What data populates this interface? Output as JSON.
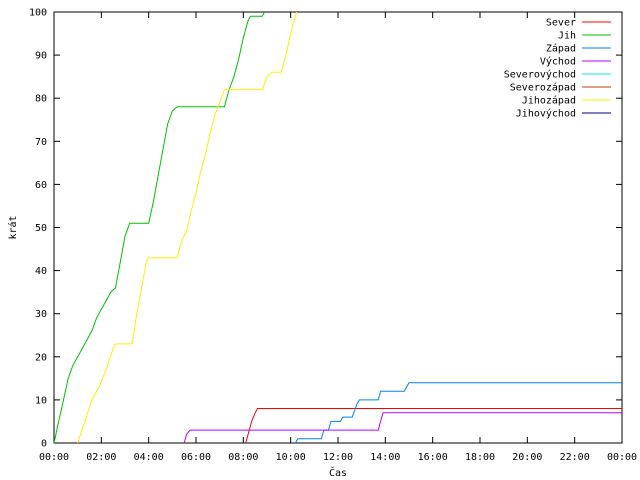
{
  "chart_data": {
    "type": "line",
    "xlabel": "Čas",
    "ylabel": "krát",
    "xlim": [
      0,
      24
    ],
    "ylim": [
      0,
      100
    ],
    "x_ticks": [
      {
        "value": 0,
        "label": "00:00"
      },
      {
        "value": 2,
        "label": "02:00"
      },
      {
        "value": 4,
        "label": "04:00"
      },
      {
        "value": 6,
        "label": "06:00"
      },
      {
        "value": 8,
        "label": "08:00"
      },
      {
        "value": 10,
        "label": "10:00"
      },
      {
        "value": 12,
        "label": "12:00"
      },
      {
        "value": 14,
        "label": "14:00"
      },
      {
        "value": 16,
        "label": "16:00"
      },
      {
        "value": 18,
        "label": "18:00"
      },
      {
        "value": 20,
        "label": "20:00"
      },
      {
        "value": 22,
        "label": "22:00"
      },
      {
        "value": 24,
        "label": "00:00"
      }
    ],
    "y_ticks": [
      0,
      10,
      20,
      30,
      40,
      50,
      60,
      70,
      80,
      90,
      100
    ],
    "grid": false,
    "legend_position": "top-right",
    "series": [
      {
        "name": "Sever",
        "color": "#ff0000",
        "points": [
          [
            8.1,
            0
          ],
          [
            8.2,
            2
          ],
          [
            8.35,
            5
          ],
          [
            8.5,
            7
          ],
          [
            8.6,
            8
          ],
          [
            24,
            8
          ]
        ]
      },
      {
        "name": "Jih",
        "color": "#00c000",
        "points": [
          [
            0,
            0
          ],
          [
            0.2,
            5
          ],
          [
            0.4,
            10
          ],
          [
            0.6,
            15
          ],
          [
            0.8,
            18
          ],
          [
            1.0,
            20
          ],
          [
            1.2,
            22
          ],
          [
            1.4,
            24
          ],
          [
            1.6,
            26
          ],
          [
            1.8,
            29
          ],
          [
            2.0,
            31
          ],
          [
            2.2,
            33
          ],
          [
            2.4,
            35
          ],
          [
            2.6,
            36
          ],
          [
            2.8,
            42
          ],
          [
            3.0,
            48
          ],
          [
            3.2,
            51
          ],
          [
            4.0,
            51
          ],
          [
            4.2,
            56
          ],
          [
            4.4,
            62
          ],
          [
            4.6,
            68
          ],
          [
            4.8,
            74
          ],
          [
            5.0,
            77
          ],
          [
            5.2,
            78
          ],
          [
            7.2,
            78
          ],
          [
            7.4,
            82
          ],
          [
            7.6,
            85
          ],
          [
            7.8,
            89
          ],
          [
            8.0,
            94
          ],
          [
            8.2,
            98
          ],
          [
            8.3,
            99
          ],
          [
            8.8,
            99
          ],
          [
            8.9,
            100
          ]
        ]
      },
      {
        "name": "Západ",
        "color": "#0080ff",
        "points": [
          [
            10.2,
            0
          ],
          [
            10.3,
            1
          ],
          [
            11.3,
            1
          ],
          [
            11.4,
            3
          ],
          [
            11.6,
            3
          ],
          [
            11.7,
            5
          ],
          [
            12.1,
            5
          ],
          [
            12.2,
            6
          ],
          [
            12.6,
            6
          ],
          [
            12.8,
            9
          ],
          [
            12.9,
            10
          ],
          [
            13.7,
            10
          ],
          [
            13.8,
            12
          ],
          [
            14.8,
            12
          ],
          [
            14.9,
            13
          ],
          [
            15.0,
            14
          ],
          [
            24,
            14
          ]
        ]
      },
      {
        "name": "Východ",
        "color": "#c000ff",
        "points": [
          [
            5.5,
            0
          ],
          [
            5.6,
            2
          ],
          [
            5.75,
            3
          ],
          [
            13.7,
            3
          ],
          [
            13.8,
            5
          ],
          [
            13.9,
            7
          ],
          [
            24,
            7
          ]
        ]
      },
      {
        "name": "Severovýchod",
        "color": "#00eeee",
        "points": []
      },
      {
        "name": "Severozápad",
        "color": "#c04000",
        "points": []
      },
      {
        "name": "Jihozápad",
        "color": "#ffee00",
        "points": [
          [
            1.0,
            0
          ],
          [
            1.3,
            5
          ],
          [
            1.6,
            10
          ],
          [
            1.9,
            13
          ],
          [
            2.2,
            17
          ],
          [
            2.5,
            22
          ],
          [
            2.6,
            23
          ],
          [
            3.3,
            23
          ],
          [
            3.5,
            30
          ],
          [
            3.7,
            36
          ],
          [
            3.9,
            42
          ],
          [
            4.0,
            43
          ],
          [
            5.2,
            43
          ],
          [
            5.4,
            47
          ],
          [
            5.6,
            49
          ],
          [
            5.8,
            54
          ],
          [
            6.0,
            58
          ],
          [
            6.2,
            63
          ],
          [
            6.4,
            67
          ],
          [
            6.6,
            72
          ],
          [
            6.8,
            76
          ],
          [
            7.0,
            79
          ],
          [
            7.2,
            82
          ],
          [
            8.8,
            82
          ],
          [
            9.0,
            85
          ],
          [
            9.2,
            86
          ],
          [
            9.6,
            86
          ],
          [
            9.8,
            90
          ],
          [
            10.0,
            95
          ],
          [
            10.2,
            99
          ],
          [
            10.25,
            100
          ]
        ]
      },
      {
        "name": "Jihovýchod",
        "color": "#000080",
        "points": []
      }
    ]
  }
}
